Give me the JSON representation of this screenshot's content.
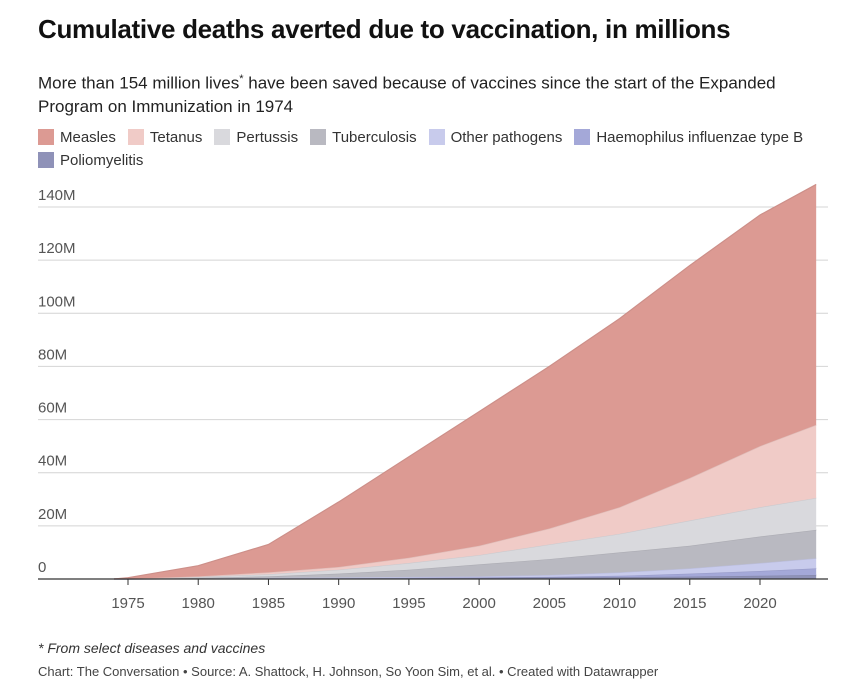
{
  "title": "Cumulative deaths averted due to vaccination, in millions",
  "subtitle_pre": "More than 154 million lives",
  "subtitle_star": "*",
  "subtitle_post": " have been saved because of vaccines since the start of the Expanded Program on Immunization in 1974",
  "note": "* From select diseases and vaccines",
  "credit": "Chart: The Conversation • Source: A. Shattock, H. Johnson, So Yoon Sim, et al. • Created with Datawrapper",
  "chart_data": {
    "type": "area",
    "stacked": true,
    "x": [
      1974,
      1975,
      1980,
      1985,
      1990,
      1995,
      2000,
      2005,
      2010,
      2015,
      2020,
      2024
    ],
    "xticks": [
      "1975",
      "1980",
      "1985",
      "1990",
      "1995",
      "2000",
      "2005",
      "2010",
      "2015",
      "2020"
    ],
    "yticks": [
      "0",
      "20M",
      "40M",
      "60M",
      "80M",
      "100M",
      "120M",
      "140M"
    ],
    "ylim": [
      0,
      150
    ],
    "grid": true,
    "legend": "top",
    "series": [
      {
        "name": "Poliomyelitis",
        "color": "#8f92b8",
        "values": [
          0,
          0,
          0.1,
          0.2,
          0.3,
          0.4,
          0.5,
          0.6,
          0.7,
          0.9,
          1.2,
          1.5
        ]
      },
      {
        "name": "Haemophilus influenzae type B",
        "color": "#a4a8d8",
        "values": [
          0,
          0,
          0,
          0,
          0,
          0,
          0.1,
          0.2,
          0.5,
          1.1,
          1.8,
          2.5
        ]
      },
      {
        "name": "Other pathogens",
        "color": "#c8cbec",
        "values": [
          0,
          0,
          0.1,
          0.2,
          0.3,
          0.4,
          0.4,
          0.7,
          1.3,
          2,
          3,
          3.8
        ]
      },
      {
        "name": "Tuberculosis",
        "color": "#b9b9c1",
        "values": [
          0,
          0,
          0.2,
          0.6,
          1.4,
          2.7,
          4.5,
          6,
          7.5,
          8.5,
          10,
          10.7
        ]
      },
      {
        "name": "Pertussis",
        "color": "#d9d9dd",
        "values": [
          0,
          0.1,
          0.4,
          0.8,
          1.5,
          2.5,
          3.5,
          5.5,
          7,
          9.5,
          11,
          12
        ]
      },
      {
        "name": "Tetanus",
        "color": "#f0cbc7",
        "values": [
          0,
          0,
          0.2,
          0.7,
          1,
          2,
          3.5,
          6,
          10,
          16,
          23,
          27.5
        ]
      },
      {
        "name": "Measles",
        "color": "#dc9a93",
        "values": [
          0,
          0.4,
          4,
          10.5,
          24.5,
          38,
          50.5,
          61,
          71,
          80,
          87,
          90.5
        ]
      }
    ]
  }
}
